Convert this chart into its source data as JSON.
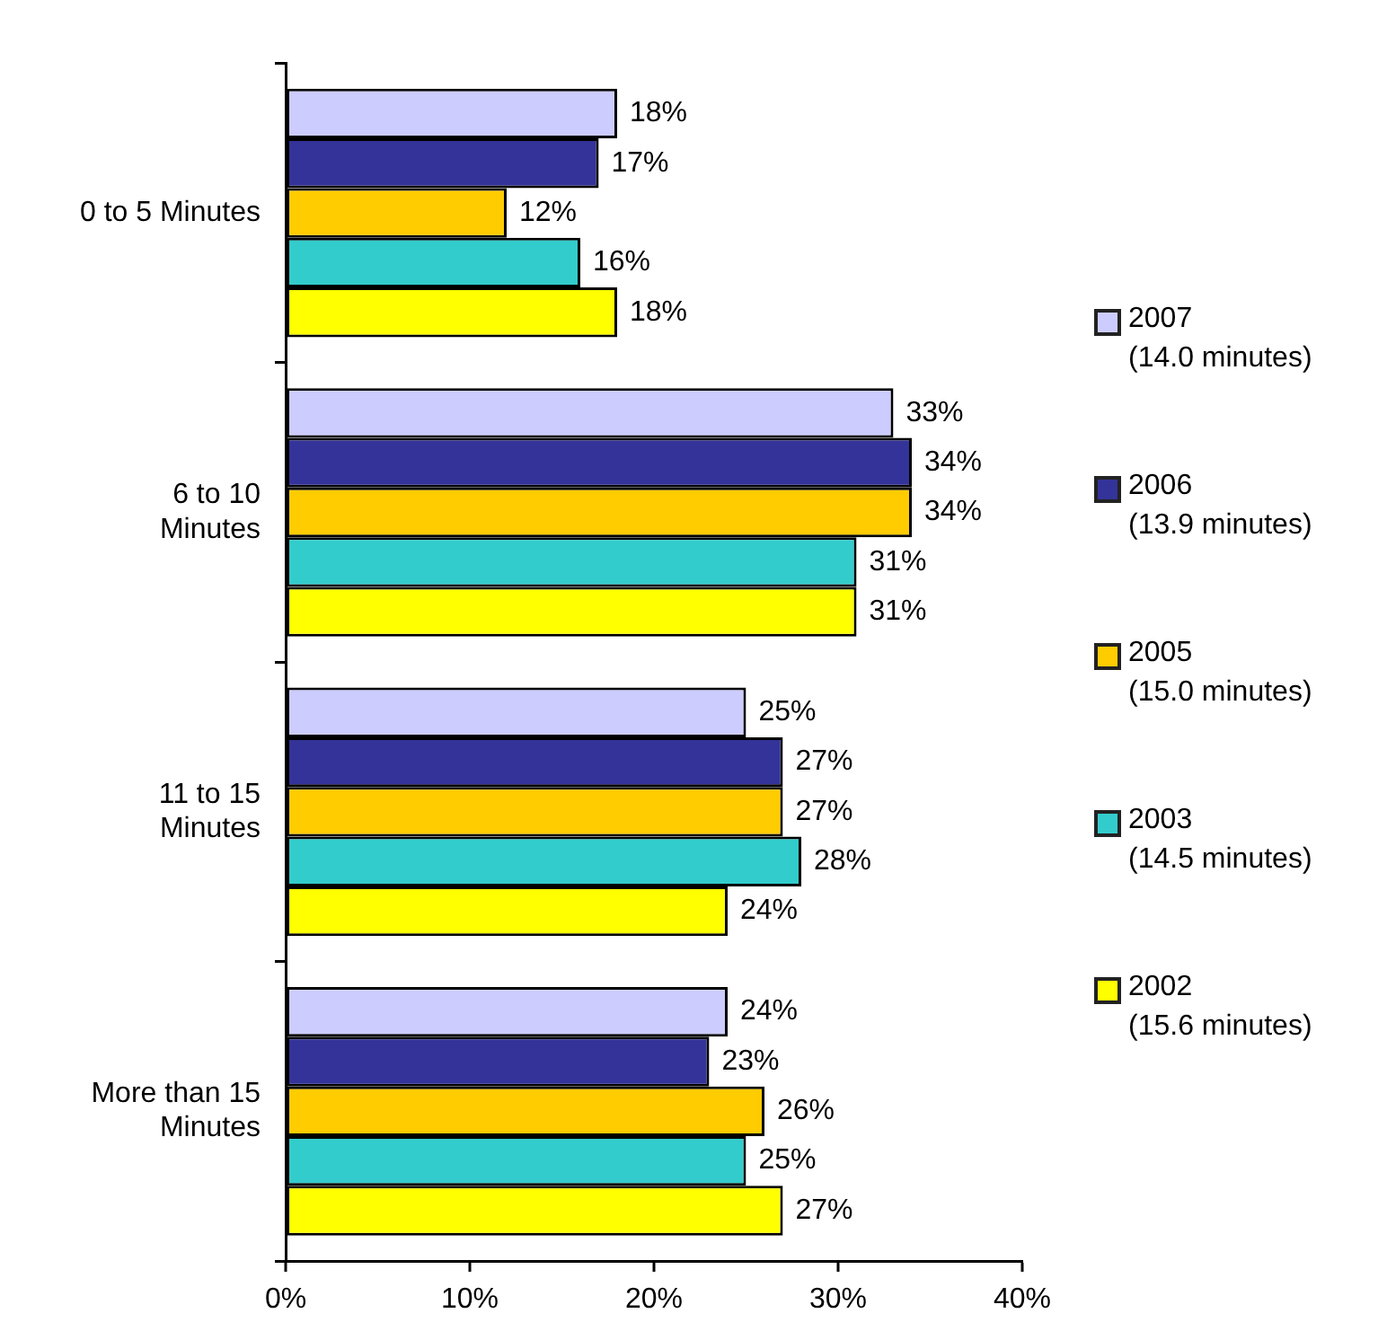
{
  "chart_data": {
    "type": "bar",
    "orientation": "horizontal",
    "categories": [
      "0 to 5 Minutes",
      "6 to 10 Minutes",
      "11 to 15 Minutes",
      "More than 15 Minutes"
    ],
    "series": [
      {
        "name": "2007 (14.0 minutes)",
        "color": "#ccccff",
        "values": [
          18,
          33,
          25,
          24
        ],
        "value_labels": [
          "18%",
          "33%",
          "25%",
          "24%"
        ]
      },
      {
        "name": "2006 (13.9 minutes)",
        "color": "#333399",
        "values": [
          17,
          34,
          27,
          23
        ],
        "value_labels": [
          "17%",
          "34%",
          "27%",
          "23%"
        ]
      },
      {
        "name": "2005 (15.0 minutes)",
        "color": "#ffcc00",
        "values": [
          12,
          34,
          27,
          26
        ],
        "value_labels": [
          "12%",
          "34%",
          "27%",
          "26%"
        ]
      },
      {
        "name": "2003 (14.5 minutes)",
        "color": "#33cccc",
        "values": [
          16,
          31,
          28,
          25
        ],
        "value_labels": [
          "16%",
          "31%",
          "28%",
          "25%"
        ]
      },
      {
        "name": "2002 (15.6 minutes)",
        "color": "#ffff00",
        "values": [
          18,
          31,
          24,
          27
        ],
        "value_labels": [
          "18%",
          "31%",
          "24%",
          "27%"
        ]
      }
    ],
    "xlim": [
      0,
      40
    ],
    "xticks": [
      {
        "value": 0,
        "label": "0%"
      },
      {
        "value": 10,
        "label": "10%"
      },
      {
        "value": 20,
        "label": "20%"
      },
      {
        "value": 30,
        "label": "30%"
      },
      {
        "value": 40,
        "label": "40%"
      }
    ],
    "grid": false,
    "legend": "right"
  }
}
